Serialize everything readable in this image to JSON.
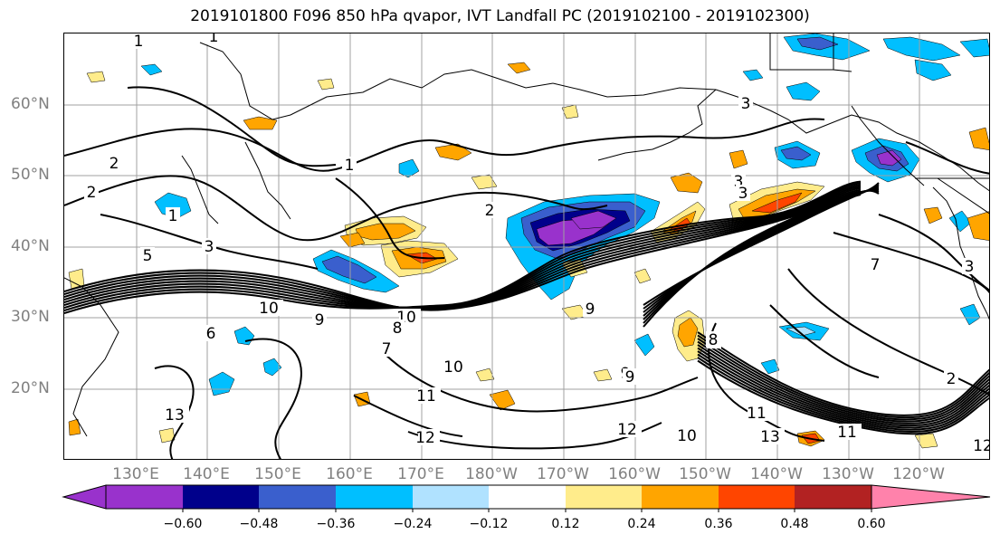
{
  "title": "2019101800 F096 850 hPa qvapor, IVT Landfall PC (2019102100 - 2019102300)",
  "lat_labels": [
    "60°N",
    "50°N",
    "40°N",
    "30°N",
    "20°N"
  ],
  "lon_labels": [
    "130°E",
    "140°E",
    "150°E",
    "160°E",
    "170°E",
    "180°W",
    "170°W",
    "160°W",
    "150°W",
    "140°W",
    "130°W",
    "120°W"
  ],
  "colorbar": {
    "ticks": [
      "−0.60",
      "−0.48",
      "−0.36",
      "−0.24",
      "−0.12",
      "0.12",
      "0.24",
      "0.36",
      "0.48",
      "0.60"
    ],
    "colors": [
      "#9932cc",
      "#00008b",
      "#3a5fcd",
      "#00bfff",
      "#b0e2ff",
      "#ffffff",
      "#ffec8b",
      "#ffa500",
      "#ff4500",
      "#b22222",
      "#ff82ab"
    ]
  },
  "contour_labels": [
    "1",
    "1",
    "2",
    "1",
    "2",
    "2",
    "1",
    "3",
    "3",
    "3",
    "3",
    "5",
    "10",
    "9",
    "10",
    "7",
    "6",
    "9",
    "8",
    "10",
    "11",
    "13",
    "12",
    "9",
    "12",
    "10",
    "13",
    "11",
    "12",
    "11",
    "9",
    "8",
    "7",
    "9",
    "3",
    "2",
    "8"
  ]
}
